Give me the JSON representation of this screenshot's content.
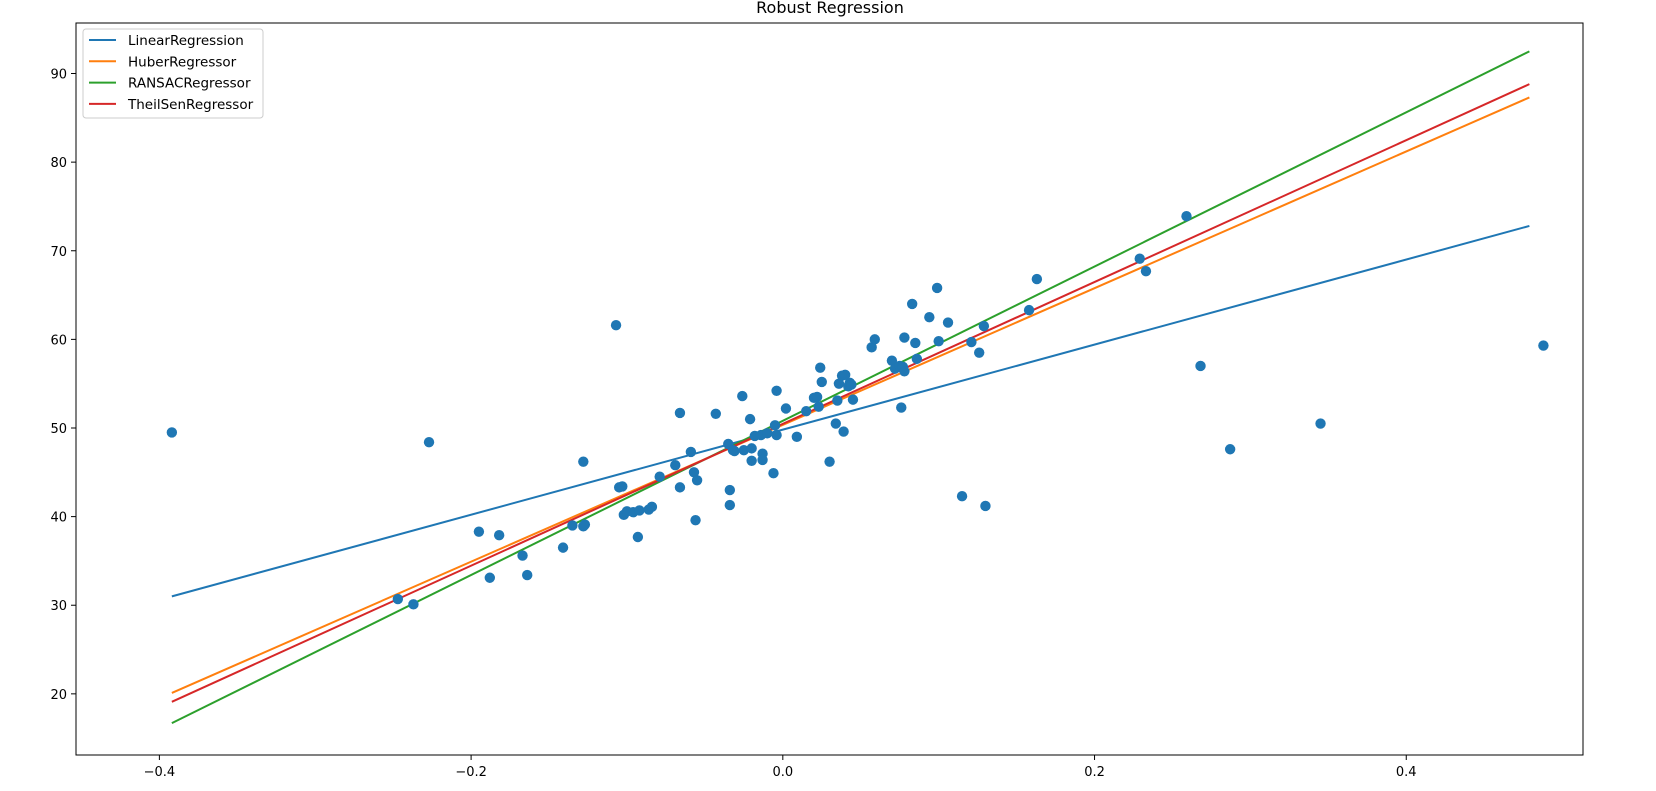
{
  "chart_data": {
    "type": "scatter",
    "title": "Robust Regression",
    "xlabel": "",
    "ylabel": "",
    "xlim": [
      -0.4535,
      0.5134
    ],
    "ylim": [
      13.1,
      95.7
    ],
    "x_ticks": [
      -0.4,
      -0.2,
      0.0,
      0.2,
      0.4
    ],
    "x_tick_labels": [
      "−0.4",
      "−0.2",
      "0.0",
      "0.2",
      "0.4"
    ],
    "y_ticks": [
      20,
      30,
      40,
      50,
      60,
      70,
      80,
      90
    ],
    "y_tick_labels": [
      "20",
      "30",
      "40",
      "50",
      "60",
      "70",
      "80",
      "90"
    ],
    "grid": false,
    "legend_position": "top-left",
    "points": {
      "color": "#1f77b4",
      "x": [
        -0.392,
        -0.227,
        -0.247,
        -0.237,
        -0.195,
        -0.188,
        -0.182,
        -0.167,
        -0.164,
        -0.141,
        -0.135,
        -0.128,
        -0.127,
        -0.128,
        -0.107,
        -0.105,
        -0.103,
        -0.102,
        -0.1,
        -0.096,
        -0.093,
        -0.092,
        -0.086,
        -0.084,
        -0.079,
        -0.069,
        -0.066,
        -0.066,
        -0.059,
        -0.057,
        -0.056,
        -0.055,
        -0.043,
        -0.035,
        -0.034,
        -0.034,
        -0.031,
        -0.032,
        -0.026,
        -0.025,
        -0.021,
        -0.02,
        -0.02,
        -0.018,
        -0.014,
        -0.013,
        -0.013,
        -0.01,
        -0.006,
        -0.005,
        -0.004,
        -0.004,
        0.002,
        0.009,
        0.015,
        0.02,
        0.022,
        0.023,
        0.024,
        0.025,
        0.03,
        0.034,
        0.035,
        0.036,
        0.038,
        0.039,
        0.04,
        0.042,
        0.043,
        0.044,
        0.045,
        0.057,
        0.059,
        0.07,
        0.072,
        0.075,
        0.076,
        0.077,
        0.078,
        0.078,
        0.083,
        0.085,
        0.086,
        0.094,
        0.099,
        0.1,
        0.106,
        0.115,
        0.121,
        0.126,
        0.129,
        0.13,
        0.158,
        0.163,
        0.229,
        0.233,
        0.259,
        0.268,
        0.287,
        0.345,
        0.488
      ],
      "y": [
        49.5,
        48.4,
        30.7,
        30.1,
        38.3,
        33.1,
        37.9,
        35.6,
        33.4,
        36.5,
        39.0,
        46.2,
        39.1,
        38.9,
        61.6,
        43.3,
        43.4,
        40.2,
        40.6,
        40.5,
        37.7,
        40.7,
        40.8,
        41.1,
        44.5,
        45.8,
        51.7,
        43.3,
        47.3,
        45.0,
        39.6,
        44.1,
        51.6,
        48.2,
        41.3,
        43.0,
        47.4,
        47.5,
        53.6,
        47.5,
        51.0,
        46.3,
        47.7,
        49.1,
        49.2,
        47.1,
        46.4,
        49.4,
        44.9,
        50.3,
        54.2,
        49.2,
        52.2,
        49.0,
        51.9,
        53.4,
        53.5,
        52.4,
        56.8,
        55.2,
        46.2,
        50.5,
        53.1,
        55.0,
        55.9,
        49.6,
        56.0,
        54.7,
        55.1,
        54.9,
        53.2,
        59.1,
        60.0,
        57.6,
        56.7,
        57.0,
        52.3,
        56.9,
        56.4,
        60.2,
        64.0,
        59.6,
        57.8,
        62.5,
        65.8,
        59.8,
        61.9,
        42.3,
        59.7,
        58.5,
        61.5,
        41.2,
        63.3,
        66.8,
        69.1,
        67.7,
        73.9,
        57.0,
        47.6,
        50.5,
        59.3
      ]
    },
    "series": [
      {
        "name": "LinearRegression",
        "color": "#1f77b4",
        "x": [
          -0.392,
          0.479
        ],
        "y": [
          31.0,
          72.8
        ]
      },
      {
        "name": "HuberRegressor",
        "color": "#ff7f0e",
        "x": [
          -0.392,
          0.479
        ],
        "y": [
          20.1,
          87.3
        ]
      },
      {
        "name": "RANSACRegressor",
        "color": "#2ca02c",
        "x": [
          -0.392,
          0.479
        ],
        "y": [
          16.7,
          92.5
        ]
      },
      {
        "name": "TheilSenRegressor",
        "color": "#d62728",
        "x": [
          -0.392,
          0.479
        ],
        "y": [
          19.1,
          88.8
        ]
      }
    ]
  }
}
